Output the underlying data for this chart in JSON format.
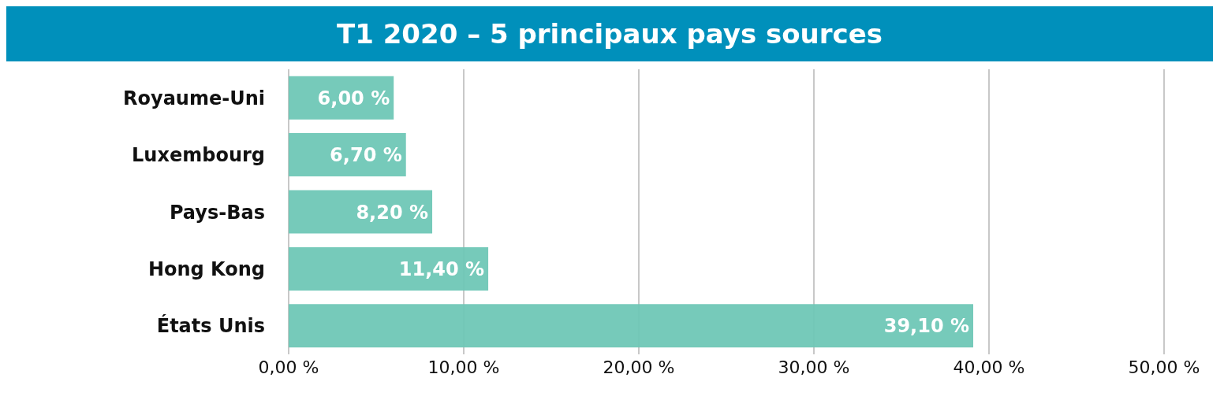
{
  "chart_data": {
    "type": "bar",
    "orientation": "horizontal",
    "title": "T1 2020 – 5 principaux pays sources",
    "categories": [
      "Royaume-Uni",
      "Luxembourg",
      "Pays-Bas",
      "Hong Kong",
      "États Unis"
    ],
    "values": [
      6.0,
      6.7,
      8.2,
      11.4,
      39.1
    ],
    "value_labels": [
      "6,00 %",
      "6,70 %",
      "8,20 %",
      "11,40 %",
      "39,10 %"
    ],
    "color": "#6fc7b6",
    "xlim": [
      0,
      50
    ],
    "xticks": [
      {
        "value": 0,
        "label": "0,00 %"
      },
      {
        "value": 10,
        "label": "10,00 %"
      },
      {
        "value": 20,
        "label": "20,00 %"
      },
      {
        "value": 30,
        "label": "30,00 %"
      },
      {
        "value": 40,
        "label": "40,00 %"
      },
      {
        "value": 50,
        "label": "50,00 %"
      }
    ],
    "grid": "x"
  }
}
